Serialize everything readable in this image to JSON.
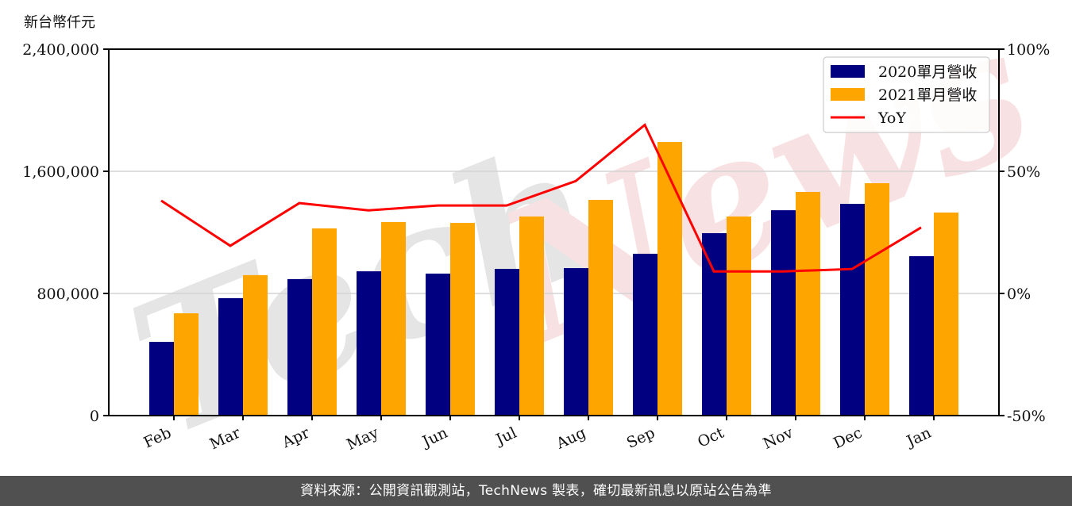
{
  "unit_label": "新台幣仟元",
  "footer_text": "資料來源：公開資訊觀測站，TechNews 製表，確切最新訊息以原站公告為準",
  "watermark": "TechNews",
  "colors": {
    "series_2020": "#000080",
    "series_2021": "#FFA500",
    "yoy": "#FF0000",
    "grid": "#d3d3d3",
    "footer_bg": "#505050",
    "watermark_gray": "#e5e5e5",
    "watermark_pink": "#f8e1e3"
  },
  "legend": {
    "items": [
      {
        "label": "2020單月營收",
        "type": "bar",
        "color": "#000080"
      },
      {
        "label": "2021單月營收",
        "type": "bar",
        "color": "#FFA500"
      },
      {
        "label": "YoY",
        "type": "line",
        "color": "#FF0000"
      }
    ]
  },
  "chart_data": {
    "type": "bar",
    "title": "",
    "xlabel": "",
    "ylabel": "新台幣仟元",
    "y2label": "",
    "categories": [
      "Feb",
      "Mar",
      "Apr",
      "May",
      "Jun",
      "Jul",
      "Aug",
      "Sep",
      "Oct",
      "Nov",
      "Dec",
      "Jan"
    ],
    "series": [
      {
        "name": "2020單月營收",
        "type": "bar",
        "axis": "left",
        "values": [
          483000,
          769000,
          894000,
          945000,
          930000,
          961000,
          966000,
          1060000,
          1195000,
          1345000,
          1387000,
          1044000
        ]
      },
      {
        "name": "2021單月營收",
        "type": "bar",
        "axis": "left",
        "values": [
          670000,
          920000,
          1226000,
          1268000,
          1262000,
          1304000,
          1413000,
          1792000,
          1304000,
          1465000,
          1522000,
          1330000
        ]
      },
      {
        "name": "YoY",
        "type": "line",
        "axis": "right",
        "unit": "%",
        "values": [
          38,
          19.5,
          37,
          34,
          36,
          36,
          46,
          69,
          9,
          9,
          10,
          27
        ]
      }
    ],
    "ylim": [
      0,
      2400000
    ],
    "yticks": [
      0,
      800000,
      1600000,
      2400000
    ],
    "ytick_labels": [
      "0",
      "800,000",
      "1,600,000",
      "2,400,000"
    ],
    "y2lim": [
      -50,
      100
    ],
    "y2ticks": [
      -50,
      0,
      50,
      100
    ],
    "y2tick_labels": [
      "-50%",
      "0%",
      "50%",
      "100%"
    ],
    "grid": true,
    "legend_position": "upper right"
  }
}
